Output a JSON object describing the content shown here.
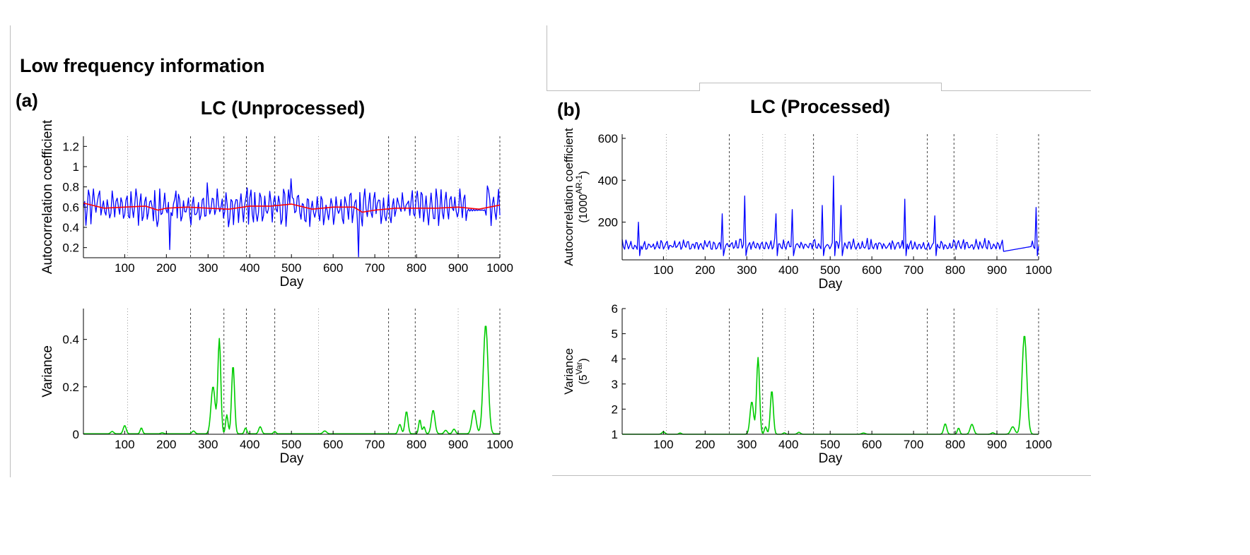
{
  "heading": "Low frequency information",
  "panels": [
    {
      "label": "(a)",
      "title": "LC (Unprocessed)"
    },
    {
      "label": "(b)",
      "title": "LC (Processed)"
    }
  ],
  "colors": {
    "ar": "#0000ff",
    "smooth": "#ff0000",
    "variance": "#00cc00",
    "vline": "#555555",
    "axis": "#000000"
  },
  "chart_data": [
    {
      "id": "a-ar",
      "type": "line",
      "title": "LC (Unprocessed)",
      "xlabel": "Day",
      "ylabel": "Autocorrelation coefficient",
      "ylabel_sup": "",
      "ylabel_tail": "",
      "xlim": [
        1,
        1000
      ],
      "ylim": [
        0.1,
        1.3
      ],
      "xticks": [
        100,
        200,
        300,
        400,
        500,
        600,
        700,
        800,
        900,
        1000
      ],
      "yticks": [
        0.2,
        0.4,
        0.6,
        0.8,
        1,
        1.2
      ],
      "ytick_labels": [
        "0.2",
        "0.4",
        "0.6",
        "0.8",
        "1",
        "1.2"
      ],
      "vlines": [
        {
          "x": 107,
          "style": "dotted"
        },
        {
          "x": 258,
          "style": "dashed"
        },
        {
          "x": 338,
          "style": "dashed"
        },
        {
          "x": 392,
          "style": "dashed"
        },
        {
          "x": 460,
          "style": "dashed"
        },
        {
          "x": 565,
          "style": "dotted"
        },
        {
          "x": 733,
          "style": "dashed"
        },
        {
          "x": 797,
          "style": "dashed"
        },
        {
          "x": 900,
          "style": "dotted"
        },
        {
          "x": 1000,
          "style": "dashed"
        }
      ],
      "series": [
        {
          "name": "Autocorrelation",
          "color": "#0000ff",
          "gen": "ar_a",
          "base": 0.6,
          "amp": 0.2
        },
        {
          "name": "Trend",
          "color": "#ff0000",
          "x": [
            1,
            50,
            100,
            150,
            180,
            200,
            250,
            300,
            350,
            400,
            450,
            500,
            550,
            600,
            650,
            670,
            700,
            750,
            800,
            850,
            900,
            950,
            1000
          ],
          "y": [
            0.64,
            0.59,
            0.6,
            0.61,
            0.57,
            0.59,
            0.6,
            0.59,
            0.58,
            0.61,
            0.61,
            0.63,
            0.58,
            0.6,
            0.6,
            0.55,
            0.57,
            0.59,
            0.59,
            0.59,
            0.6,
            0.58,
            0.62
          ]
        }
      ],
      "peaks": [
        {
          "x": 40,
          "y": 0.76
        },
        {
          "x": 208,
          "y": 0.18
        },
        {
          "x": 222,
          "y": 0.76
        },
        {
          "x": 297,
          "y": 0.84
        },
        {
          "x": 393,
          "y": 0.79
        },
        {
          "x": 500,
          "y": 0.88
        },
        {
          "x": 662,
          "y": 0.11
        },
        {
          "x": 970,
          "y": 0.81
        }
      ]
    },
    {
      "id": "a-var",
      "type": "line",
      "xlabel": "Day",
      "ylabel": "Variance",
      "ylabel_sup": "",
      "ylabel_tail": "",
      "xlim": [
        1,
        1000
      ],
      "ylim": [
        0,
        0.53
      ],
      "xticks": [
        100,
        200,
        300,
        400,
        500,
        600,
        700,
        800,
        900,
        1000
      ],
      "yticks": [
        0,
        0.2,
        0.4
      ],
      "ytick_labels": [
        "0",
        "0.2",
        "0.4"
      ],
      "vlines": [
        {
          "x": 107,
          "style": "dotted"
        },
        {
          "x": 258,
          "style": "dashed"
        },
        {
          "x": 338,
          "style": "dashed"
        },
        {
          "x": 392,
          "style": "dashed"
        },
        {
          "x": 460,
          "style": "dashed"
        },
        {
          "x": 565,
          "style": "dotted"
        },
        {
          "x": 733,
          "style": "dashed"
        },
        {
          "x": 797,
          "style": "dashed"
        },
        {
          "x": 900,
          "style": "dotted"
        },
        {
          "x": 1000,
          "style": "dashed"
        }
      ],
      "series": [
        {
          "name": "Variance",
          "color": "#00cc00",
          "baseline": 0.002,
          "peaks": [
            [
              70,
              0.01,
              5
            ],
            [
              100,
              0.035,
              5
            ],
            [
              140,
              0.025,
              4
            ],
            [
              190,
              0.004,
              5
            ],
            [
              265,
              0.012,
              5
            ],
            [
              312,
              0.2,
              7
            ],
            [
              327,
              0.4,
              5
            ],
            [
              345,
              0.08,
              4
            ],
            [
              360,
              0.29,
              5
            ],
            [
              390,
              0.025,
              4
            ],
            [
              425,
              0.03,
              5
            ],
            [
              460,
              0.01,
              4
            ],
            [
              580,
              0.012,
              6
            ],
            [
              760,
              0.04,
              5
            ],
            [
              776,
              0.095,
              5
            ],
            [
              808,
              0.06,
              4
            ],
            [
              818,
              0.03,
              4
            ],
            [
              840,
              0.1,
              6
            ],
            [
              870,
              0.015,
              5
            ],
            [
              890,
              0.02,
              5
            ],
            [
              938,
              0.1,
              7
            ],
            [
              966,
              0.46,
              8
            ]
          ]
        }
      ]
    },
    {
      "id": "b-ar",
      "type": "line",
      "title": "LC (Processed)",
      "xlabel": "Day",
      "ylabel": "Autocorrelation coefficient",
      "ylabel_sup": "AR-1",
      "ylabel_tail": "(1000",
      "xlim": [
        1,
        1000
      ],
      "ylim": [
        20,
        620
      ],
      "xticks": [
        100,
        200,
        300,
        400,
        500,
        600,
        700,
        800,
        900,
        1000
      ],
      "yticks": [
        200,
        400,
        600
      ],
      "ytick_labels": [
        "200",
        "400",
        "600"
      ],
      "vlines": [
        {
          "x": 107,
          "style": "dotted"
        },
        {
          "x": 258,
          "style": "dashed"
        },
        {
          "x": 338,
          "style": "dotted"
        },
        {
          "x": 392,
          "style": "dotted"
        },
        {
          "x": 460,
          "style": "dashed"
        },
        {
          "x": 565,
          "style": "dotted"
        },
        {
          "x": 733,
          "style": "dashed"
        },
        {
          "x": 797,
          "style": "dashed"
        },
        {
          "x": 900,
          "style": "dotted"
        },
        {
          "x": 1000,
          "style": "dashed"
        }
      ],
      "series": [
        {
          "name": "Autocorrelation",
          "color": "#0000ff",
          "gen": "ar_b",
          "base": 70,
          "amp": 45
        }
      ],
      "peaks": [
        {
          "x": 40,
          "y": 200
        },
        {
          "x": 240,
          "y": 240
        },
        {
          "x": 295,
          "y": 325
        },
        {
          "x": 370,
          "y": 240
        },
        {
          "x": 410,
          "y": 260
        },
        {
          "x": 480,
          "y": 280
        },
        {
          "x": 507,
          "y": 420
        },
        {
          "x": 525,
          "y": 280
        },
        {
          "x": 680,
          "y": 310
        },
        {
          "x": 750,
          "y": 230
        },
        {
          "x": 995,
          "y": 270
        }
      ]
    },
    {
      "id": "b-var",
      "type": "line",
      "xlabel": "Day",
      "ylabel": "Variance",
      "ylabel_sup": "Var",
      "ylabel_tail": "(5",
      "xlim": [
        1,
        1000
      ],
      "ylim": [
        1,
        6
      ],
      "xticks": [
        100,
        200,
        300,
        400,
        500,
        600,
        700,
        800,
        900,
        1000
      ],
      "yticks": [
        1,
        2,
        3,
        4,
        5,
        6
      ],
      "ytick_labels": [
        "1",
        "2",
        "3",
        "4",
        "5",
        "6"
      ],
      "vlines": [
        {
          "x": 107,
          "style": "dotted"
        },
        {
          "x": 258,
          "style": "dashed"
        },
        {
          "x": 338,
          "style": "dashed"
        },
        {
          "x": 392,
          "style": "dotted"
        },
        {
          "x": 460,
          "style": "dashed"
        },
        {
          "x": 565,
          "style": "dotted"
        },
        {
          "x": 733,
          "style": "dashed"
        },
        {
          "x": 797,
          "style": "dashed"
        },
        {
          "x": 900,
          "style": "dotted"
        },
        {
          "x": 1000,
          "style": "dashed"
        }
      ],
      "series": [
        {
          "name": "Variance",
          "color": "#00cc00",
          "baseline": 1.0,
          "peaks": [
            [
              100,
              0.1,
              5
            ],
            [
              140,
              0.05,
              4
            ],
            [
              312,
              1.3,
              6
            ],
            [
              327,
              3.05,
              5
            ],
            [
              345,
              0.3,
              4
            ],
            [
              360,
              1.75,
              5
            ],
            [
              390,
              0.06,
              4
            ],
            [
              425,
              0.08,
              5
            ],
            [
              580,
              0.05,
              6
            ],
            [
              776,
              0.42,
              5
            ],
            [
              808,
              0.25,
              4
            ],
            [
              840,
              0.4,
              6
            ],
            [
              890,
              0.06,
              5
            ],
            [
              938,
              0.3,
              7
            ],
            [
              966,
              3.95,
              8
            ]
          ]
        }
      ]
    }
  ]
}
